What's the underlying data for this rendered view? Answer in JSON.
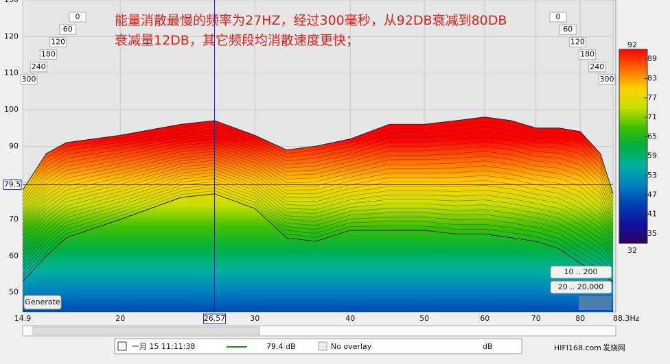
{
  "annotation": [
    "能量消散最慢的频率为27HZ，经过300毫秒，从92DB衰减到80DB",
    "衰减量12DB，其它频段均消散速度更快；"
  ],
  "chart_data": {
    "type": "waterfall",
    "x": [
      14.9,
      16,
      17,
      20,
      24,
      26.57,
      30,
      33,
      36,
      40,
      45,
      50,
      55,
      60,
      65,
      70,
      75,
      80,
      85,
      88.3
    ],
    "series": [
      {
        "values": [
          78,
          88,
          91,
          93,
          96,
          97,
          93,
          89,
          90,
          92,
          96,
          96,
          97,
          98,
          97,
          95,
          95,
          94,
          88,
          77
        ]
      },
      {
        "values": [
          53,
          60,
          65,
          70,
          76,
          77,
          73,
          65,
          64,
          67,
          67,
          67,
          66,
          66,
          65,
          64,
          62,
          58,
          55,
          53
        ]
      }
    ],
    "xlim": [
      14.9,
      88.3
    ],
    "log_x": true,
    "xticks": [
      14.9,
      20,
      30,
      40,
      50,
      60,
      70,
      80,
      {
        "value": 88.3,
        "label": "88.3Hz"
      }
    ],
    "ylim": [
      44.7,
      130
    ],
    "yticks": [
      50,
      60,
      70,
      80,
      90,
      100,
      110,
      120,
      130
    ],
    "grid": true,
    "time_ticks": [
      0,
      60,
      120,
      180,
      240,
      300
    ],
    "cursor": {
      "x": 26.57,
      "y": 79.5
    },
    "colorbar": {
      "lim": [
        32,
        92
      ],
      "ticks": [
        35,
        41,
        47,
        53,
        59,
        65,
        71,
        77,
        83,
        89
      ],
      "colors": [
        "#ff0000",
        "#ff6a00",
        "#ffd000",
        "#c8e000",
        "#40c000",
        "#00b040",
        "#00b0a0",
        "#0080c0",
        "#0040b0",
        "#1010a0",
        "#300060"
      ]
    }
  },
  "controls": {
    "generate": "Generate",
    "ranges": [
      "10 .. 200",
      "20 .. 20,000"
    ]
  },
  "status": {
    "time": "一月 15 11:11:38",
    "level": "79.4 dB",
    "overlay": "No overlay",
    "unit": "dB"
  },
  "watermark": [
    "HIFI168.com",
    "发烧网"
  ]
}
